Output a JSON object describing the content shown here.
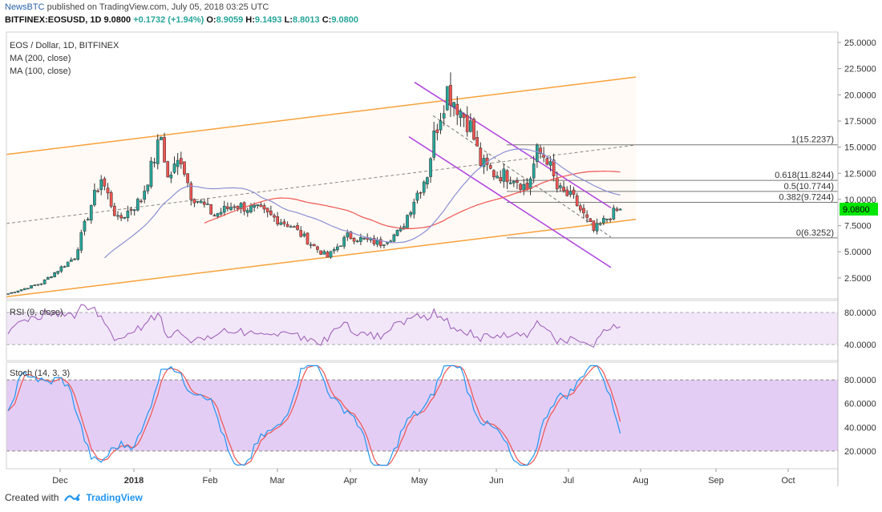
{
  "header": {
    "line1_brand": "NewsBTC",
    "line1_rest": " published on TradingView.com, July 05, 2018 03:25 UTC",
    "symbol": "BITFINEX:EOSUSD, 1D",
    "last": "9.0800",
    "change": "+0.1732 (+1.94%)",
    "o_label": "O:",
    "o_val": "8.9059",
    "h_label": "H:",
    "h_val": "9.1493",
    "l_label": "L:",
    "l_val": "8.8013",
    "c_label": "C:",
    "c_val": "9.0800"
  },
  "legend": {
    "title": "EOS / Dollar, 1D, BITFINEX",
    "ma200": "MA (200, close)",
    "ma100": "MA (100, close)"
  },
  "rsi_label": "RSI (9, close)",
  "stoch_label": "Stoch (14, 3, 3)",
  "footer": {
    "created": "Created with",
    "brand": "TradingView"
  },
  "colors": {
    "up": "#26a69a",
    "down": "#ef5350",
    "channel": "#f7a23b",
    "falling": "#b041e0",
    "ma200": "#ef5350",
    "ma100": "#8a8fd6",
    "rsi": "#9b59b6",
    "stochK": "#2196f3",
    "stochD": "#ef5350",
    "price_badge": "#00e600"
  },
  "chart_data": [
    {
      "type": "candlestick",
      "title": "EOS / Dollar, 1D, BITFINEX",
      "y_ticks": [
        "25.0000",
        "22.5000",
        "20.0000",
        "17.5000",
        "15.0000",
        "12.5000",
        "10.0000",
        "7.5000",
        "5.0000",
        "2.5000"
      ],
      "ylim": [
        0.5,
        26
      ],
      "x_ticks": [
        "Dec",
        "2018",
        "Feb",
        "Mar",
        "Apr",
        "May",
        "Jun",
        "Jul",
        "Aug",
        "Sep",
        "Oct"
      ],
      "last_price": "9.0800",
      "fib_levels": [
        {
          "label": "1(15.2237)",
          "value": 15.2237
        },
        {
          "label": "0.618(11.8244)",
          "value": 11.8244
        },
        {
          "label": "0.5(10.7744)",
          "value": 10.7744
        },
        {
          "label": "0.382(9.7244)",
          "value": 9.7244
        },
        {
          "label": "0(6.3252)",
          "value": 6.3252
        }
      ],
      "keypoints": [
        {
          "t": 0,
          "price": 1.0
        },
        {
          "t": 10,
          "price": 2.0
        },
        {
          "t": 20,
          "price": 4.5
        },
        {
          "t": 25,
          "price": 9.5
        },
        {
          "t": 28,
          "price": 12.0
        },
        {
          "t": 33,
          "price": 8.0
        },
        {
          "t": 40,
          "price": 10.0
        },
        {
          "t": 46,
          "price": 16.0
        },
        {
          "t": 48,
          "price": 12.0
        },
        {
          "t": 52,
          "price": 14.0
        },
        {
          "t": 55,
          "price": 10.5
        },
        {
          "t": 62,
          "price": 8.5
        },
        {
          "t": 68,
          "price": 9.5
        },
        {
          "t": 75,
          "price": 9.0
        },
        {
          "t": 85,
          "price": 7.5
        },
        {
          "t": 92,
          "price": 5.5
        },
        {
          "t": 96,
          "price": 4.5
        },
        {
          "t": 102,
          "price": 6.5
        },
        {
          "t": 112,
          "price": 5.8
        },
        {
          "t": 118,
          "price": 7.0
        },
        {
          "t": 122,
          "price": 10.0
        },
        {
          "t": 126,
          "price": 12.5
        },
        {
          "t": 128,
          "price": 16.0
        },
        {
          "t": 132,
          "price": 20.5
        },
        {
          "t": 135,
          "price": 19.0
        },
        {
          "t": 139,
          "price": 17.0
        },
        {
          "t": 142,
          "price": 13.5
        },
        {
          "t": 146,
          "price": 12.5
        },
        {
          "t": 152,
          "price": 12.2
        },
        {
          "t": 156,
          "price": 11.0
        },
        {
          "t": 159,
          "price": 14.5
        },
        {
          "t": 162,
          "price": 14.0
        },
        {
          "t": 165,
          "price": 11.0
        },
        {
          "t": 170,
          "price": 10.0
        },
        {
          "t": 176,
          "price": 7.0
        },
        {
          "t": 181,
          "price": 8.5
        },
        {
          "t": 184,
          "price": 9.08
        }
      ]
    },
    {
      "type": "line",
      "title": "RSI (9, close)",
      "y_ticks": [
        "80.0000",
        "40.0000"
      ],
      "ylim": [
        20,
        95
      ]
    },
    {
      "type": "line",
      "title": "Stoch (14, 3, 3)",
      "y_ticks": [
        "80.0000",
        "60.0000",
        "40.0000",
        "20.0000"
      ],
      "ylim": [
        5,
        95
      ]
    }
  ]
}
